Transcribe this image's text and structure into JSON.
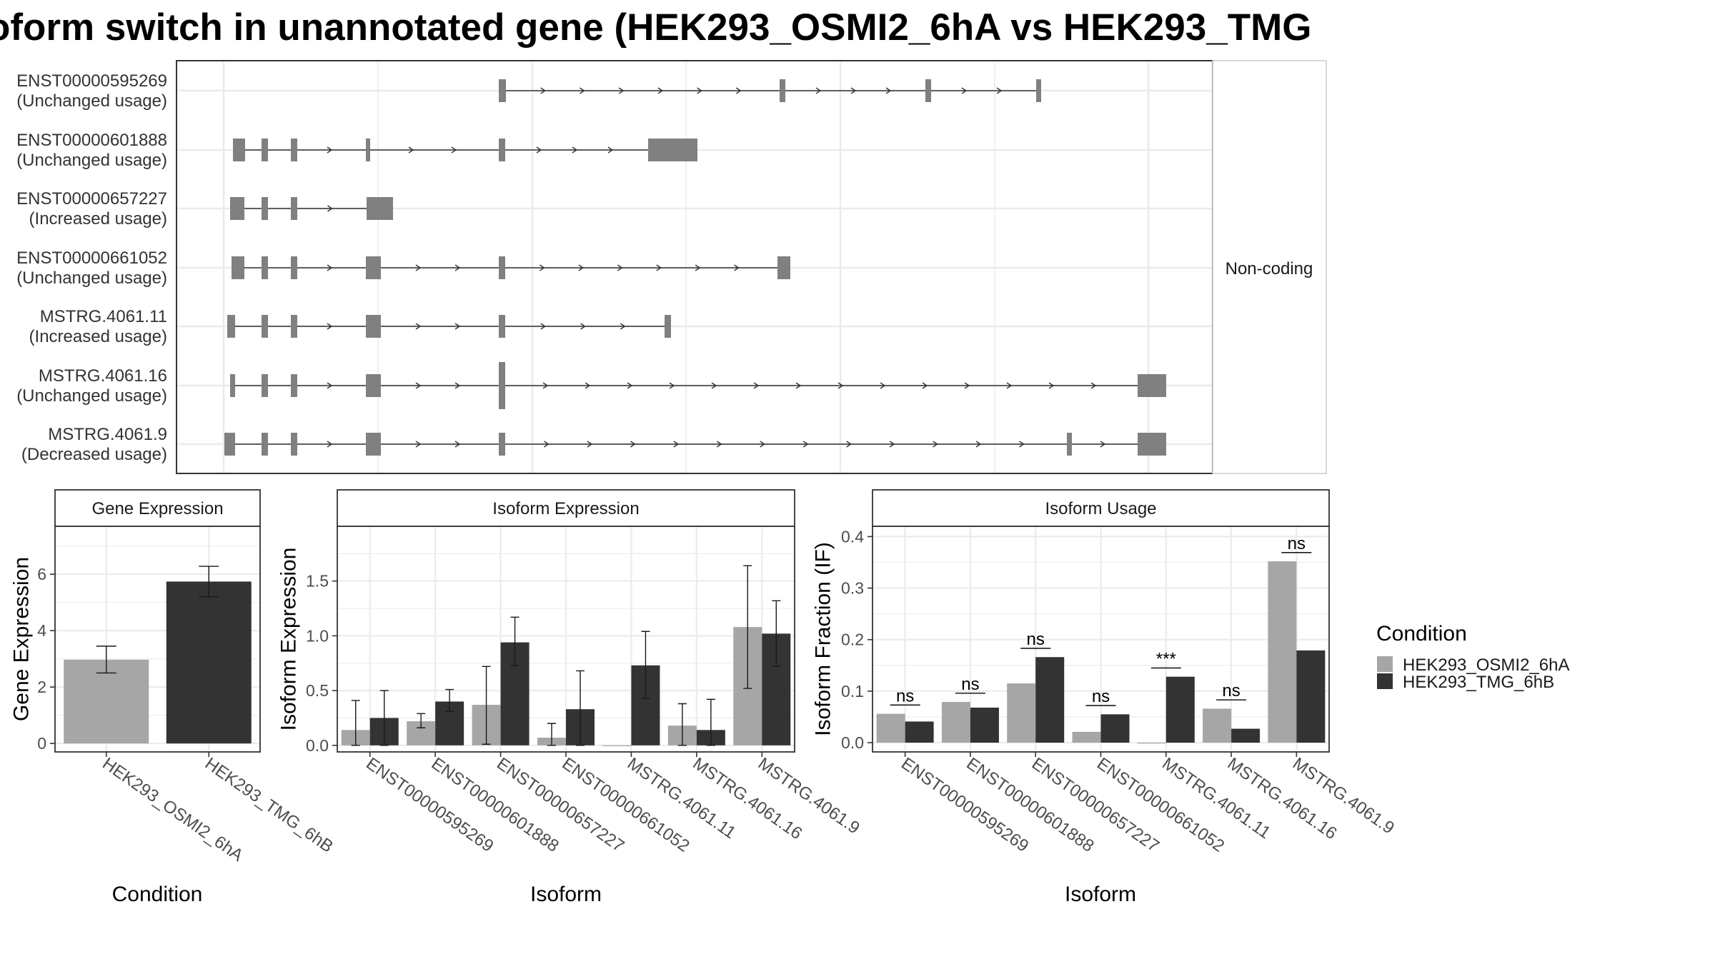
{
  "title": "oform switch in unannotated gene (HEK293_OSMI2_6hA vs HEK293_TMG",
  "colors": {
    "hek_a": "#a6a6a6",
    "hek_b": "#333333",
    "exon": "#808080",
    "grid": "#ebebeb",
    "strip": "#ffffff"
  },
  "structure": {
    "facet_label": "Non-coding",
    "transcripts": [
      {
        "id": "ENST00000595269",
        "usage": "(Unchanged usage)"
      },
      {
        "id": "ENST00000601888",
        "usage": "(Unchanged usage)"
      },
      {
        "id": "ENST00000657227",
        "usage": "(Increased usage)"
      },
      {
        "id": "ENST00000661052",
        "usage": "(Unchanged usage)"
      },
      {
        "id": "MSTRG.4061.11",
        "usage": "(Increased usage)"
      },
      {
        "id": "MSTRG.4061.16",
        "usage": "(Unchanged usage)"
      },
      {
        "id": "MSTRG.4061.9",
        "usage": "(Decreased usage)"
      }
    ]
  },
  "legend": {
    "title": "Condition",
    "items": [
      "HEK293_OSMI2_6hA",
      "HEK293_TMG_6hB"
    ]
  },
  "chart_data": [
    {
      "type": "bar",
      "title": "Gene Expression",
      "xlabel": "Condition",
      "ylabel": "Gene Expression",
      "categories": [
        "HEK293_OSMI2_6hA",
        "HEK293_TMG_6hB"
      ],
      "values": [
        2.97,
        5.74
      ],
      "error_low": [
        2.5,
        5.2
      ],
      "error_high": [
        3.45,
        6.28
      ],
      "ylim": [
        -0.3,
        7.7
      ],
      "yticks": [
        0,
        2,
        4,
        6
      ],
      "grid": true
    },
    {
      "type": "bar",
      "title": "Isoform Expression",
      "xlabel": "Isoform",
      "ylabel": "Isoform Expression",
      "ylim": [
        -0.06,
        2.0
      ],
      "yticks": [
        "0.0",
        "0.5",
        "1.0",
        "1.5"
      ],
      "categories": [
        "ENST00000595269",
        "ENST00000601888",
        "ENST00000657227",
        "ENST00000661052",
        "MSTRG.4061.11",
        "MSTRG.4061.16",
        "MSTRG.4061.9"
      ],
      "series": [
        {
          "name": "HEK293_OSMI2_6hA",
          "values": [
            0.14,
            0.22,
            0.37,
            0.07,
            0.0,
            0.18,
            1.08
          ],
          "error_low": [
            0.0,
            0.16,
            0.01,
            0.0,
            0.0,
            0.0,
            0.52
          ],
          "error_high": [
            0.41,
            0.29,
            0.72,
            0.2,
            0.0,
            0.38,
            1.64
          ]
        },
        {
          "name": "HEK293_TMG_6hB",
          "values": [
            0.25,
            0.4,
            0.94,
            0.33,
            0.73,
            0.14,
            1.02
          ],
          "error_low": [
            0.0,
            0.31,
            0.73,
            0.0,
            0.43,
            0.0,
            0.72
          ],
          "error_high": [
            0.5,
            0.51,
            1.17,
            0.68,
            1.04,
            0.42,
            1.32
          ]
        }
      ],
      "grid": true
    },
    {
      "type": "bar",
      "title": "Isoform Usage",
      "xlabel": "Isoform",
      "ylabel": "Isoform Fraction (IF)",
      "ylim": [
        -0.018,
        0.42
      ],
      "yticks": [
        "0.0",
        "0.1",
        "0.2",
        "0.3",
        "0.4"
      ],
      "categories": [
        "ENST00000595269",
        "ENST00000601888",
        "ENST00000657227",
        "ENST00000661052",
        "MSTRG.4061.11",
        "MSTRG.4061.16",
        "MSTRG.4061.9"
      ],
      "series": [
        {
          "name": "HEK293_OSMI2_6hA",
          "values": [
            0.056,
            0.079,
            0.115,
            0.021,
            0.0,
            0.066,
            0.352
          ]
        },
        {
          "name": "HEK293_TMG_6hB",
          "values": [
            0.041,
            0.068,
            0.166,
            0.055,
            0.128,
            0.027,
            0.179
          ]
        }
      ],
      "significance": [
        {
          "label": "ns",
          "y": 0.073
        },
        {
          "label": "ns",
          "y": 0.096
        },
        {
          "label": "ns",
          "y": 0.183
        },
        {
          "label": "ns",
          "y": 0.072
        },
        {
          "label": "***",
          "y": 0.145
        },
        {
          "label": "ns",
          "y": 0.083
        },
        {
          "label": "ns",
          "y": 0.369
        }
      ],
      "grid": true
    }
  ]
}
